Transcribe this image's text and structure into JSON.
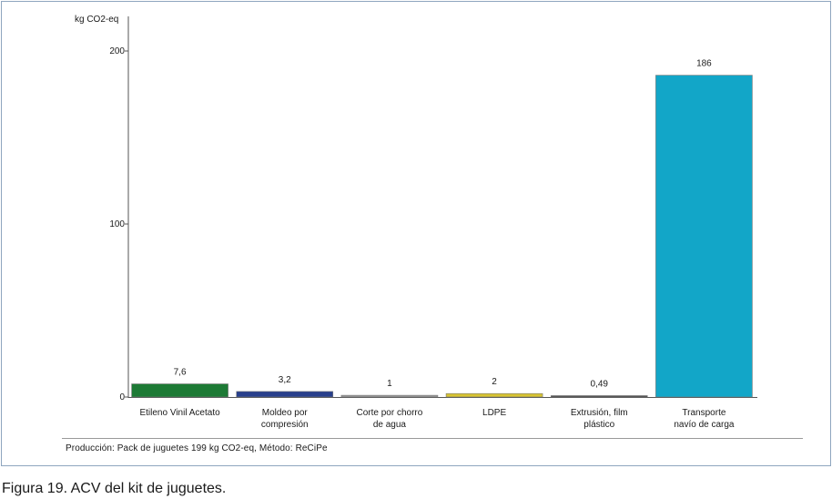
{
  "chart_data": {
    "type": "bar",
    "ylabel": "kg CO2-eq",
    "yticks": [
      0,
      100,
      200
    ],
    "ytick_labels": [
      "0",
      "100",
      "200"
    ],
    "ylim": [
      0,
      200
    ],
    "grid": false,
    "categories": [
      [
        "Etileno Vinil Acetato"
      ],
      [
        "Moldeo por",
        "compresión"
      ],
      [
        "Corte por chorro",
        "de agua"
      ],
      [
        "LDPE"
      ],
      [
        "Extrusión, film",
        "plástico"
      ],
      [
        "Transporte",
        "navío de carga"
      ]
    ],
    "values": [
      7.6,
      3.2,
      1,
      2,
      0.49,
      186
    ],
    "value_labels": [
      "7,6",
      "3,2",
      "1",
      "2",
      "0,49",
      "186"
    ],
    "colors": [
      "#1d7a35",
      "#283f8c",
      "#9a9a9a",
      "#d8c431",
      "#4a4a4a",
      "#12a6c8"
    ],
    "footnote": "Producción:  Pack de juguetes  199 kg CO2-eq,  Método: ReCiPe"
  },
  "caption": "Figura 19. ACV del kit de juguetes."
}
